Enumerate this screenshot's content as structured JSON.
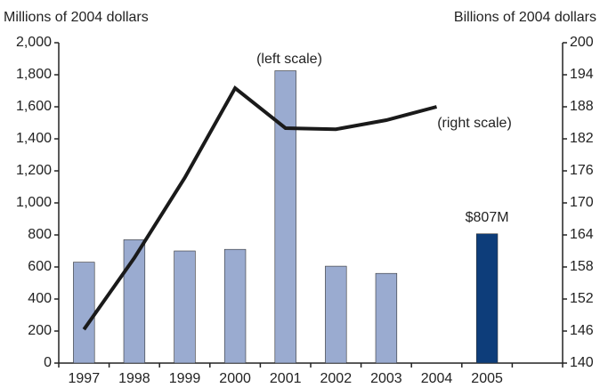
{
  "chart_data": {
    "type": "bar-line",
    "y_label": "Millions of 2004 dollars",
    "y2_label": "Billions of 2004 dollars",
    "annotations": [
      "(left scale)",
      "(right scale)"
    ],
    "categories": [
      "1997",
      "1998",
      "1999",
      "2000",
      "2001",
      "2002",
      "2003",
      "2004",
      "2005",
      null
    ],
    "series": [
      {
        "type": "bar",
        "color": "#9aabd0",
        "colors": [
          "#9aabd0",
          "#9aabd0",
          "#9aabd0",
          "#9aabd0",
          "#9aabd0",
          "#9aabd0",
          "#9aabd0",
          null,
          "#0d3d7a",
          null
        ],
        "values": [
          630,
          770,
          700,
          710,
          1825,
          605,
          560,
          null,
          807,
          null
        ],
        "value_labels": [
          null,
          null,
          null,
          null,
          null,
          null,
          null,
          null,
          "$807M",
          null
        ]
      },
      {
        "type": "line",
        "axis": "y2",
        "color": "#1a1a1a",
        "values": [
          146.3,
          159.7,
          174.7,
          191.5,
          184,
          183.8,
          185.5,
          188,
          null,
          null
        ]
      }
    ],
    "ylim": [
      0,
      2000
    ],
    "yticks": [
      0,
      200,
      400,
      600,
      800,
      {
        "value": 1000,
        "label": "1,000"
      },
      {
        "value": 1200,
        "label": "1,200"
      },
      {
        "value": 1400,
        "label": "1,400"
      },
      {
        "value": 1600,
        "label": "1,600"
      },
      {
        "value": 1800,
        "label": "1,800"
      },
      {
        "value": 2000,
        "label": "2,000"
      }
    ],
    "y2lim": [
      140,
      200
    ],
    "y2ticks": [
      140,
      146,
      152,
      158,
      164,
      170,
      176,
      182,
      188,
      194,
      200
    ]
  }
}
